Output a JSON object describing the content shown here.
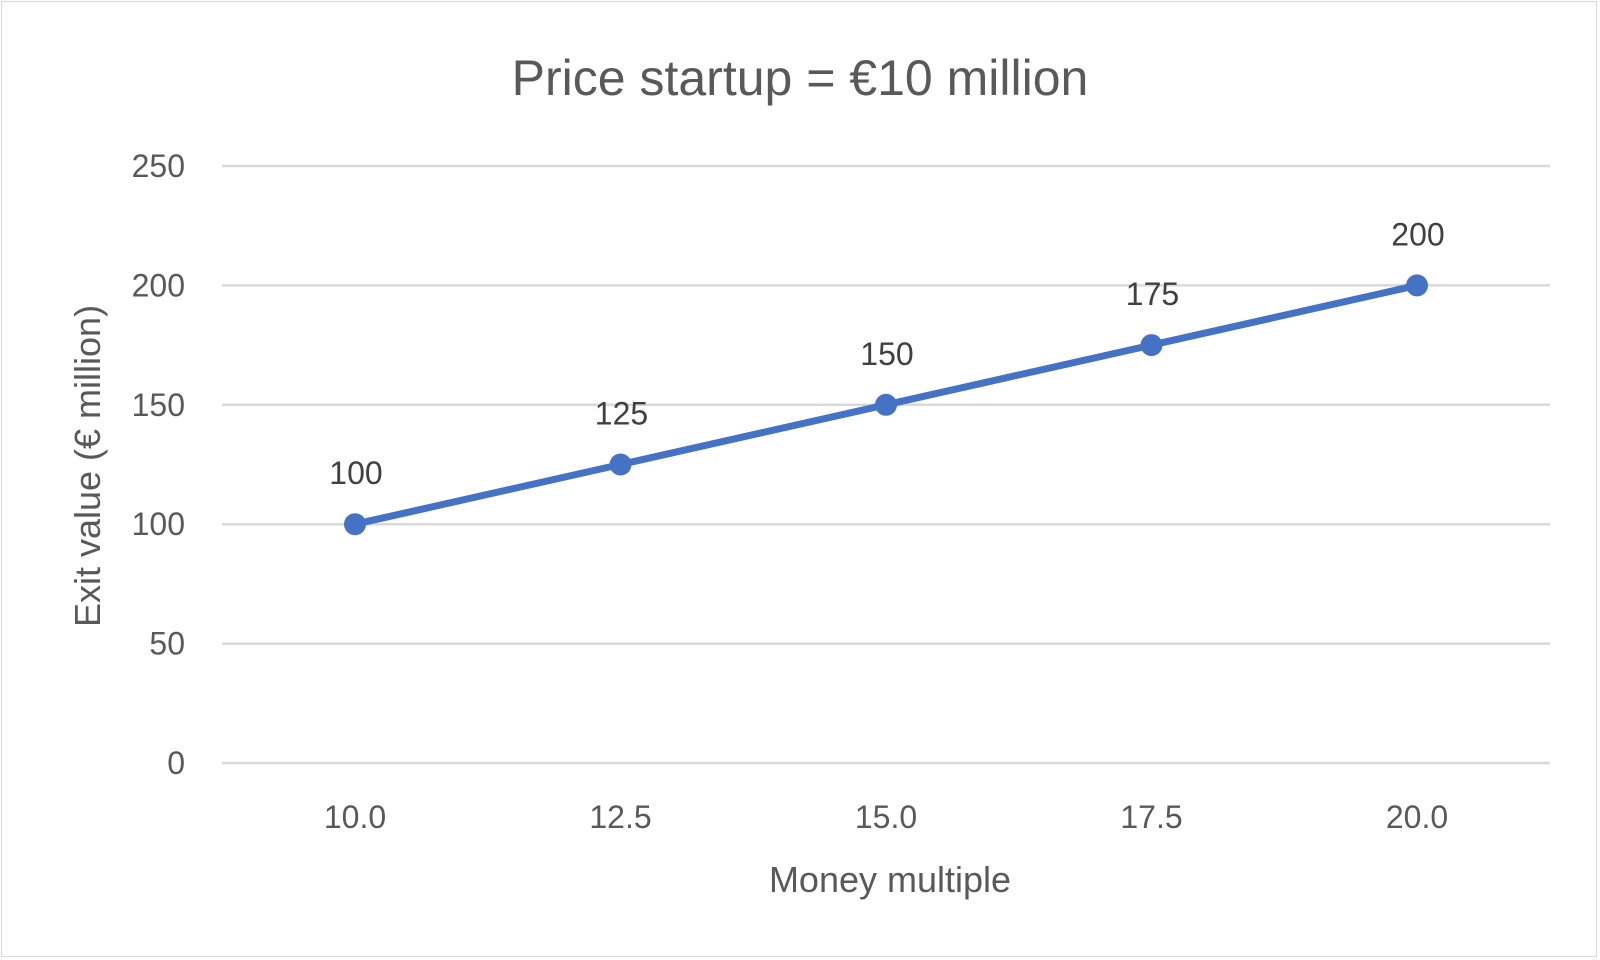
{
  "chart_data": {
    "type": "line",
    "title": "Price startup = €10 million",
    "xlabel": "Money multiple",
    "ylabel": "Exit value (€ million)",
    "x": [
      10.0,
      12.5,
      15.0,
      17.5,
      20.0
    ],
    "x_tick_labels": [
      "10.0",
      "12.5",
      "15.0",
      "17.5",
      "20.0"
    ],
    "series": [
      {
        "values": [
          100,
          125,
          150,
          175,
          200
        ],
        "data_labels": [
          "100",
          "125",
          "150",
          "175",
          "200"
        ],
        "color": "#4472c4"
      }
    ],
    "ylim": [
      0,
      250
    ],
    "y_ticks": [
      0,
      50,
      100,
      150,
      200,
      250
    ],
    "y_tick_labels": [
      "0",
      "50",
      "100",
      "150",
      "200",
      "250"
    ],
    "grid": true,
    "legend": "none",
    "gridline_color": "#d9d9d9",
    "text_color": "#595959"
  }
}
